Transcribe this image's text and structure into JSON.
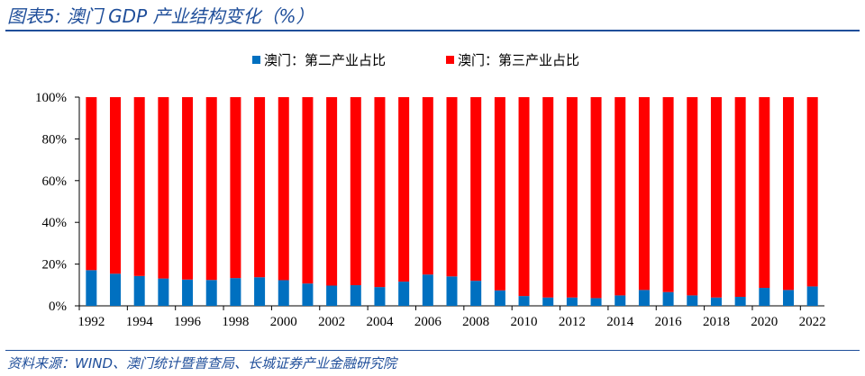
{
  "title": "图表5:  澳门 GDP 产业结构变化（%）",
  "source": "资料来源：WIND、澳门统计暨普查局、长城证券产业金融研究院",
  "chart_data": {
    "type": "bar",
    "stacked": true,
    "categories": [
      "1992",
      "1993",
      "1994",
      "1995",
      "1996",
      "1997",
      "1998",
      "1999",
      "2000",
      "2001",
      "2002",
      "2003",
      "2004",
      "2005",
      "2006",
      "2007",
      "2008",
      "2009",
      "2010",
      "2011",
      "2012",
      "2013",
      "2014",
      "2015",
      "2016",
      "2017",
      "2018",
      "2019",
      "2020",
      "2021",
      "2022"
    ],
    "x_tick_labels": [
      "1992",
      "1994",
      "1996",
      "1998",
      "2000",
      "2002",
      "2004",
      "2006",
      "2008",
      "2010",
      "2012",
      "2014",
      "2016",
      "2018",
      "2020",
      "2022"
    ],
    "series": [
      {
        "name": "澳门：第二产业占比",
        "color": "#0070c0",
        "values": [
          17.1,
          15.4,
          14.3,
          13.1,
          12.6,
          12.4,
          13.3,
          13.7,
          12.3,
          10.7,
          9.7,
          9.9,
          9.0,
          11.6,
          15.0,
          14.1,
          12.0,
          7.4,
          4.7,
          4.0,
          4.0,
          3.7,
          5.0,
          7.6,
          6.6,
          5.0,
          4.0,
          4.3,
          8.6,
          7.6,
          9.3
        ]
      },
      {
        "name": "澳门：第三产业占比",
        "color": "#ff0000",
        "values": [
          82.9,
          84.6,
          85.7,
          86.9,
          87.4,
          87.6,
          86.7,
          86.3,
          87.7,
          89.3,
          90.3,
          90.1,
          91.0,
          88.4,
          85.0,
          85.9,
          88.0,
          92.6,
          95.3,
          96.0,
          96.0,
          96.3,
          95.0,
          92.4,
          93.4,
          95.0,
          96.0,
          95.7,
          91.4,
          92.4,
          90.7
        ]
      }
    ],
    "y_tick_labels": [
      "0%",
      "20%",
      "40%",
      "60%",
      "80%",
      "100%"
    ],
    "ylim": [
      0,
      100
    ],
    "legend": "top-center",
    "grid": false
  }
}
